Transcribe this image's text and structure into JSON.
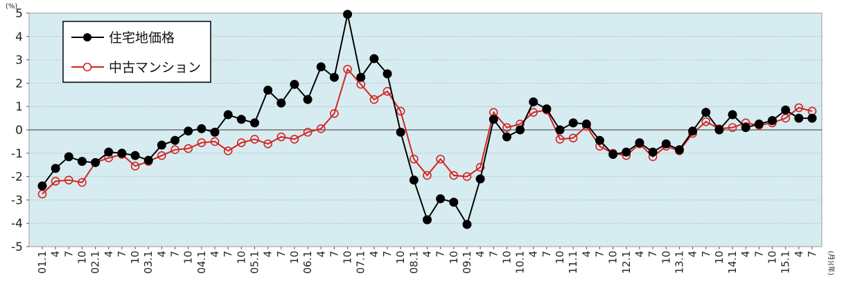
{
  "chart_data": {
    "type": "line",
    "y_unit": "(%)",
    "x_unit": "(月)(年)",
    "ylim": [
      -5,
      5
    ],
    "yticks": [
      5,
      4,
      3,
      2,
      1,
      0,
      -1,
      -2,
      -3,
      -4,
      -5
    ],
    "grid": true,
    "legend_position": "top-left",
    "background_color": "#d7ecf1",
    "categories": [
      "01.1",
      "4",
      "7",
      "10",
      "02.1",
      "4",
      "7",
      "10",
      "03.1",
      "4",
      "7",
      "10",
      "04.1",
      "4",
      "7",
      "10",
      "05.1",
      "4",
      "7",
      "10",
      "06.1",
      "4",
      "7",
      "10",
      "07.1",
      "4",
      "7",
      "10",
      "08.1",
      "4",
      "7",
      "10",
      "09.1",
      "4",
      "7",
      "10",
      "10.1",
      "4",
      "7",
      "10",
      "11.1",
      "4",
      "7",
      "10",
      "12.1",
      "4",
      "7",
      "10",
      "13.1",
      "4",
      "7",
      "10",
      "14.1",
      "4",
      "7",
      "10",
      "15.1",
      "4",
      "7"
    ],
    "series": [
      {
        "name": "住宅地価格",
        "color": "#000000",
        "marker": "filled-circle",
        "values": [
          -2.4,
          -1.65,
          -1.15,
          -1.35,
          -1.4,
          -0.95,
          -1.0,
          -1.1,
          -1.3,
          -0.65,
          -0.45,
          -0.05,
          0.05,
          -0.1,
          0.65,
          0.45,
          0.3,
          1.7,
          1.15,
          1.95,
          1.3,
          2.7,
          2.25,
          4.95,
          2.25,
          3.05,
          2.4,
          -0.1,
          -2.15,
          -3.85,
          -2.95,
          -3.1,
          -4.05,
          -2.1,
          0.45,
          -0.3,
          0.0,
          1.2,
          0.9,
          0.0,
          0.3,
          0.25,
          -0.45,
          -1.05,
          -0.95,
          -0.55,
          -0.95,
          -0.6,
          -0.85,
          -0.05,
          0.75,
          0.0,
          0.65,
          0.1,
          0.25,
          0.4,
          0.85,
          0.5,
          0.5
        ]
      },
      {
        "name": "中古マンション",
        "color": "#d62020",
        "marker": "open-circle",
        "values": [
          -2.75,
          -2.2,
          -2.15,
          -2.25,
          -1.4,
          -1.2,
          -1.05,
          -1.55,
          -1.35,
          -1.1,
          -0.85,
          -0.8,
          -0.55,
          -0.5,
          -0.9,
          -0.55,
          -0.4,
          -0.6,
          -0.3,
          -0.4,
          -0.1,
          0.05,
          0.7,
          2.6,
          1.95,
          1.3,
          1.65,
          0.8,
          -1.25,
          -1.95,
          -1.25,
          -1.95,
          -2.0,
          -1.6,
          0.75,
          0.1,
          0.25,
          0.75,
          0.85,
          -0.4,
          -0.35,
          0.15,
          -0.7,
          -1.0,
          -1.1,
          -0.6,
          -1.15,
          -0.7,
          -0.9,
          -0.15,
          0.35,
          0.05,
          0.1,
          0.3,
          0.2,
          0.3,
          0.5,
          0.95,
          0.8
        ]
      }
    ]
  }
}
